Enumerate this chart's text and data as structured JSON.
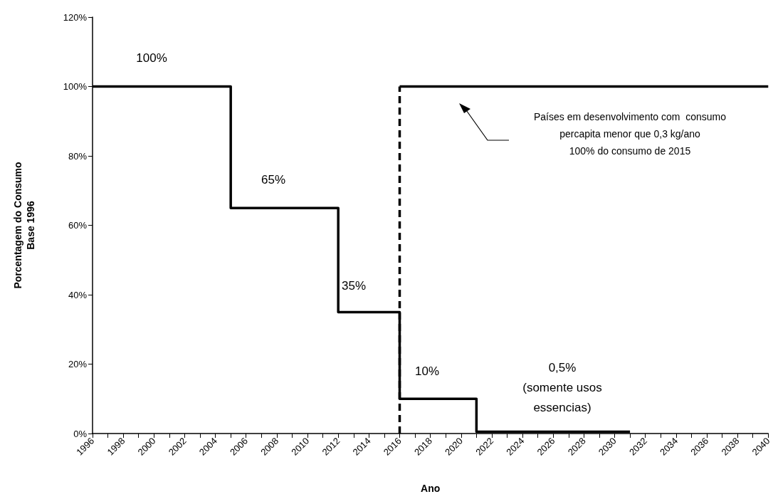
{
  "chart_data": {
    "type": "step",
    "xlabel": "Ano",
    "ylabel": "Porcentagem do Consumo\nBase 1996",
    "series": [
      {
        "color": "#000000",
        "x": [
          1996,
          2005,
          2012,
          2016,
          2021,
          2031
        ],
        "values": [
          100,
          65,
          35,
          10,
          0.5,
          0.5
        ],
        "line_style": "solid"
      },
      {
        "type": "line",
        "color": "#000000",
        "x": [
          2016,
          2016
        ],
        "values": [
          0,
          100
        ],
        "line_style": "dashed"
      },
      {
        "type": "line",
        "color": "#000000",
        "x": [
          2016,
          2040
        ],
        "values": [
          100,
          100
        ],
        "line_style": "solid"
      }
    ],
    "xlim": [
      1996,
      2040
    ],
    "xticks": [
      1996,
      {
        "value": 1997,
        "label": null
      },
      1998,
      {
        "value": 1999,
        "label": null
      },
      2000,
      {
        "value": 2001,
        "label": null
      },
      2002,
      {
        "value": 2003,
        "label": null
      },
      2004,
      {
        "value": 2005,
        "label": null
      },
      2006,
      {
        "value": 2007,
        "label": null
      },
      2008,
      {
        "value": 2009,
        "label": null
      },
      2010,
      {
        "value": 2011,
        "label": null
      },
      2012,
      {
        "value": 2013,
        "label": null
      },
      2014,
      {
        "value": 2015,
        "label": null
      },
      2016,
      {
        "value": 2017,
        "label": null
      },
      2018,
      {
        "value": 2019,
        "label": null
      },
      2020,
      {
        "value": 2021,
        "label": null
      },
      2022,
      {
        "value": 2023,
        "label": null
      },
      2024,
      {
        "value": 2025,
        "label": null
      },
      2026,
      {
        "value": 2027,
        "label": null
      },
      2028,
      {
        "value": 2029,
        "label": null
      },
      2030,
      {
        "value": 2031,
        "label": null
      },
      2032,
      {
        "value": 2033,
        "label": null
      },
      2034,
      {
        "value": 2035,
        "label": null
      },
      2036,
      {
        "value": 2037,
        "label": null
      },
      2038,
      {
        "value": 2039,
        "label": null
      },
      2040
    ],
    "ylim": [
      0,
      120
    ],
    "yticks": [
      {
        "value": 0,
        "label": "0%"
      },
      {
        "value": 20,
        "label": "20%"
      },
      {
        "value": 40,
        "label": "40%"
      },
      {
        "value": 60,
        "label": "60%"
      },
      {
        "value": 80,
        "label": "80%"
      },
      {
        "value": 100,
        "label": "100%"
      },
      {
        "value": 120,
        "label": "120%"
      }
    ],
    "annotations": [
      "100%",
      "65%",
      "35%",
      "10%",
      "0,5%\n(somente usos\nessencias)",
      "Países em desenvolvimento com  consumo\npercapita menor que 0,3 kg/ano\n100% do consumo de 2015"
    ],
    "grid": false,
    "marker": "none"
  }
}
